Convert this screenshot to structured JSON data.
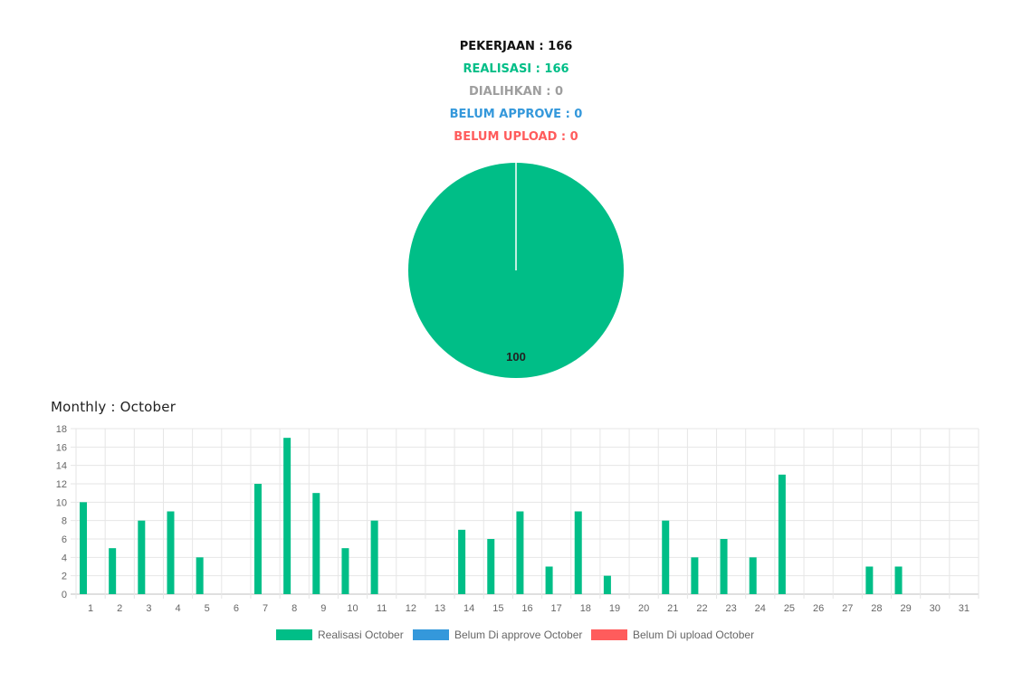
{
  "summary": {
    "pekerjaan": "PEKERJAAN : 166",
    "realisasi": "REALISASI : 166",
    "dialihkan": "DIALIHKAN : 0",
    "belum_approve": "BELUM APPROVE : 0",
    "belum_upload": "BELUM UPLOAD : 0"
  },
  "colors": {
    "realisasi": "#00be87",
    "dialihkan": "#9e9e9e",
    "belum_approve": "#3498db",
    "belum_upload": "#ff5c5c",
    "pekerjaan": "#111111"
  },
  "chart_data": [
    {
      "type": "pie",
      "slices": [
        {
          "name": "Realisasi",
          "value": 100,
          "color": "#00be87"
        }
      ],
      "data_labels": [
        "100"
      ]
    },
    {
      "type": "bar",
      "title": "Monthly : October",
      "categories": [
        "1",
        "2",
        "3",
        "4",
        "5",
        "6",
        "7",
        "8",
        "9",
        "10",
        "11",
        "12",
        "13",
        "14",
        "15",
        "16",
        "17",
        "18",
        "19",
        "20",
        "21",
        "22",
        "23",
        "24",
        "25",
        "26",
        "27",
        "28",
        "29",
        "30",
        "31"
      ],
      "series": [
        {
          "name": "Realisasi October",
          "color": "#00be87",
          "values": [
            10,
            5,
            8,
            9,
            4,
            0,
            12,
            17,
            11,
            5,
            8,
            0,
            0,
            7,
            6,
            9,
            3,
            9,
            2,
            0,
            8,
            4,
            6,
            4,
            13,
            0,
            0,
            3,
            3,
            0,
            0
          ]
        },
        {
          "name": "Belum Di approve October",
          "color": "#3498db",
          "values": [
            0,
            0,
            0,
            0,
            0,
            0,
            0,
            0,
            0,
            0,
            0,
            0,
            0,
            0,
            0,
            0,
            0,
            0,
            0,
            0,
            0,
            0,
            0,
            0,
            0,
            0,
            0,
            0,
            0,
            0,
            0
          ]
        },
        {
          "name": "Belum Di upload October",
          "color": "#ff5c5c",
          "values": [
            0,
            0,
            0,
            0,
            0,
            0,
            0,
            0,
            0,
            0,
            0,
            0,
            0,
            0,
            0,
            0,
            0,
            0,
            0,
            0,
            0,
            0,
            0,
            0,
            0,
            0,
            0,
            0,
            0,
            0,
            0
          ]
        }
      ],
      "ylim": [
        0,
        18
      ],
      "yticks": [
        0,
        2,
        4,
        6,
        8,
        10,
        12,
        14,
        16,
        18
      ],
      "grid": true,
      "legend": "bottom"
    }
  ]
}
